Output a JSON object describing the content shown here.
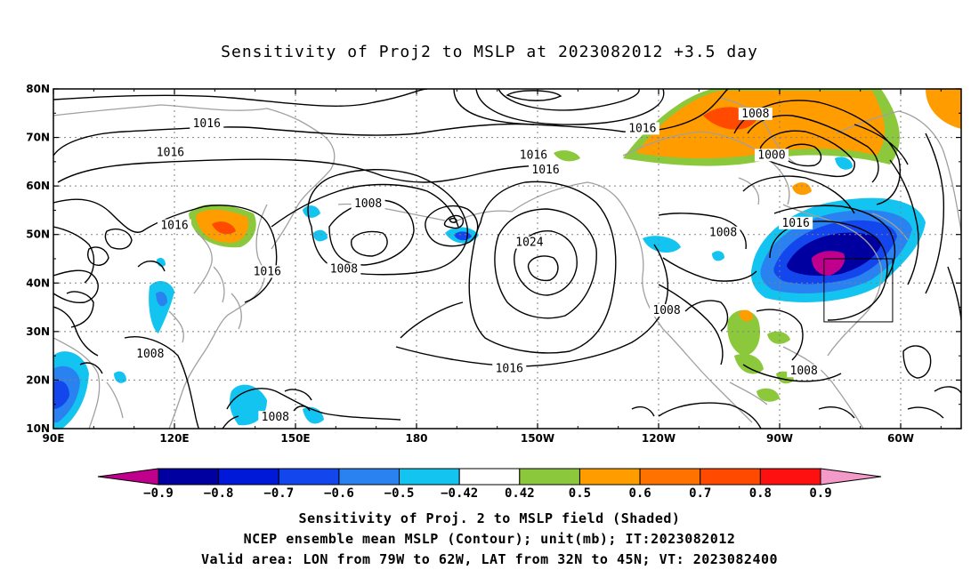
{
  "title": "Sensitivity of Proj2 to MSLP at 2023082012 +3.5 day",
  "map": {
    "lat_ticks": [
      "80N",
      "70N",
      "60N",
      "50N",
      "40N",
      "30N",
      "20N",
      "10N"
    ],
    "lon_ticks": [
      "90E",
      "120E",
      "150E",
      "180",
      "150W",
      "120W",
      "90W",
      "60W"
    ],
    "gridlines": "dotted",
    "contour_labels": [
      {
        "text": "1016",
        "lon": 128,
        "lat": 72.5
      },
      {
        "text": "1016",
        "lon": 119,
        "lat": 66.5
      },
      {
        "text": "1016",
        "lon": -151,
        "lat": 66
      },
      {
        "text": "1016",
        "lon": -148,
        "lat": 63
      },
      {
        "text": "1016",
        "lon": -124,
        "lat": 71.5
      },
      {
        "text": "1008",
        "lon": -96,
        "lat": 74.5
      },
      {
        "text": "1000",
        "lon": -92,
        "lat": 66
      },
      {
        "text": "1016",
        "lon": 120,
        "lat": 51.5
      },
      {
        "text": "1008",
        "lon": 168,
        "lat": 56
      },
      {
        "text": "1008",
        "lon": 162,
        "lat": 42.5
      },
      {
        "text": "1016",
        "lon": 143,
        "lat": 42
      },
      {
        "text": "1024",
        "lon": -152,
        "lat": 48
      },
      {
        "text": "1008",
        "lon": -104,
        "lat": 50
      },
      {
        "text": "1016",
        "lon": -86,
        "lat": 52
      },
      {
        "text": "1008",
        "lon": -118,
        "lat": 34
      },
      {
        "text": "1016",
        "lon": -157,
        "lat": 22
      },
      {
        "text": "1008",
        "lon": -84,
        "lat": 21.5
      },
      {
        "text": "1008",
        "lon": 114,
        "lat": 25
      },
      {
        "text": "1008",
        "lon": 145,
        "lat": 12
      }
    ],
    "valid_box": {
      "lon_min": -79,
      "lon_max": -62,
      "lat_min": 32,
      "lat_max": 45
    }
  },
  "colorbar": {
    "colors": [
      "#c0008c",
      "#0000a0",
      "#0018d8",
      "#1446ee",
      "#2a82f0",
      "#14c4f0",
      "#ffffff",
      "#8cc83c",
      "#ff9c00",
      "#ff7200",
      "#ff4a00",
      "#ff1010",
      "#f49ac8"
    ],
    "labels": [
      "-0.9",
      "-0.8",
      "-0.7",
      "-0.6",
      "-0.5",
      "-0.42",
      "0.42",
      "0.5",
      "0.6",
      "0.7",
      "0.8",
      "0.9"
    ]
  },
  "captions": {
    "line1": "Sensitivity of Proj. 2 to MSLP field (Shaded)",
    "line2": "NCEP ensemble mean MSLP (Contour); unit(mb); IT:2023082012",
    "line3": "Valid area: LON from 79W to 62W, LAT from 32N to 45N; VT: 2023082400"
  }
}
